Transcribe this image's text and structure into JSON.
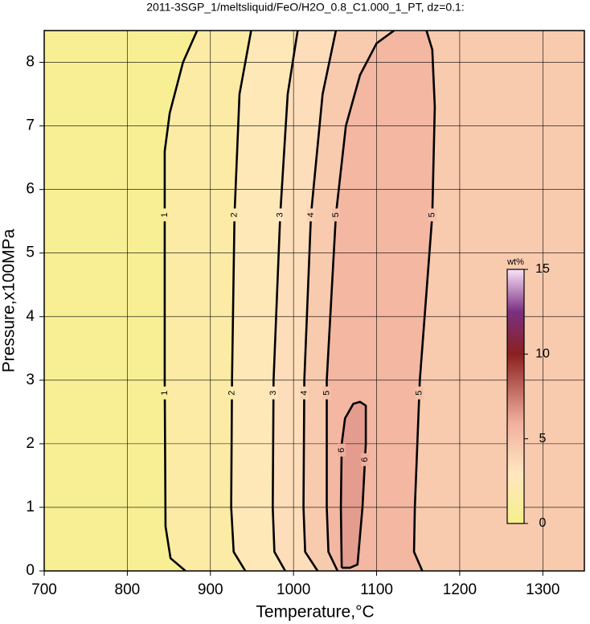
{
  "chart_data": {
    "type": "contour",
    "title": "2011-3SGP_1/meltsliquid/FeO/H2O_0.8_C1.000_1_PT, dz=0.1:",
    "xlabel": "Temperature,°C",
    "ylabel": "Pressure,x100MPa",
    "xlim": [
      700,
      1350
    ],
    "ylim": [
      0,
      8.5
    ],
    "xticks": [
      700,
      800,
      900,
      1000,
      1100,
      1200,
      1300
    ],
    "yticks": [
      0,
      1,
      2,
      3,
      4,
      5,
      6,
      7,
      8
    ],
    "grid": true,
    "colorbar": {
      "label": "wt%",
      "lim": [
        0,
        15
      ],
      "ticks": [
        0,
        5,
        10,
        15
      ],
      "colormap": [
        {
          "value": 0,
          "color": "#f6f08a"
        },
        {
          "value": 3,
          "color": "#ffe6c0"
        },
        {
          "value": 6,
          "color": "#f0ae9c"
        },
        {
          "value": 10,
          "color": "#8a2020"
        },
        {
          "value": 12.5,
          "color": "#7a3080"
        },
        {
          "value": 15,
          "color": "#fae2fa"
        }
      ]
    },
    "contours": [
      {
        "level": 1,
        "x": [
          870,
          852,
          846,
          845,
          845,
          851,
          867,
          884
        ],
        "y": [
          0,
          0.2,
          0.7,
          3,
          6.6,
          7.2,
          8,
          8.5
        ]
      },
      {
        "level": 2,
        "x": [
          942,
          928,
          925,
          926,
          929,
          935,
          949
        ],
        "y": [
          0,
          0.3,
          1,
          3,
          5.6,
          7.5,
          8.5
        ]
      },
      {
        "level": 3,
        "x": [
          990,
          977,
          975,
          976,
          984,
          993,
          1005
        ],
        "y": [
          0,
          0.3,
          1,
          3,
          5.6,
          7.5,
          8.5
        ]
      },
      {
        "level": 4,
        "x": [
          1029,
          1014,
          1012,
          1013,
          1021,
          1035,
          1051
        ],
        "y": [
          0,
          0.3,
          1,
          3,
          5.6,
          7.5,
          8.5
        ]
      },
      {
        "level": 5,
        "x": [
          1053,
          1042,
          1040,
          1040,
          1051,
          1063,
          1080,
          1100,
          1121
        ],
        "y": [
          0,
          0.3,
          1,
          3,
          5.6,
          7,
          7.8,
          8.3,
          8.5
        ]
      },
      {
        "level": 5,
        "x": [
          1160,
          1167,
          1170,
          1167,
          1152,
          1146,
          1145,
          1155
        ],
        "y": [
          8.5,
          8.2,
          7.3,
          5.6,
          3,
          1,
          0.3,
          0
        ]
      },
      {
        "level": 6,
        "x": [
          1058,
          1057,
          1058,
          1062,
          1072,
          1080,
          1087,
          1087,
          1083,
          1077,
          1068,
          1058
        ],
        "y": [
          0.05,
          1,
          2,
          2.4,
          2.63,
          2.66,
          2.6,
          2,
          1,
          0.1,
          0.05,
          0.05
        ]
      }
    ]
  }
}
